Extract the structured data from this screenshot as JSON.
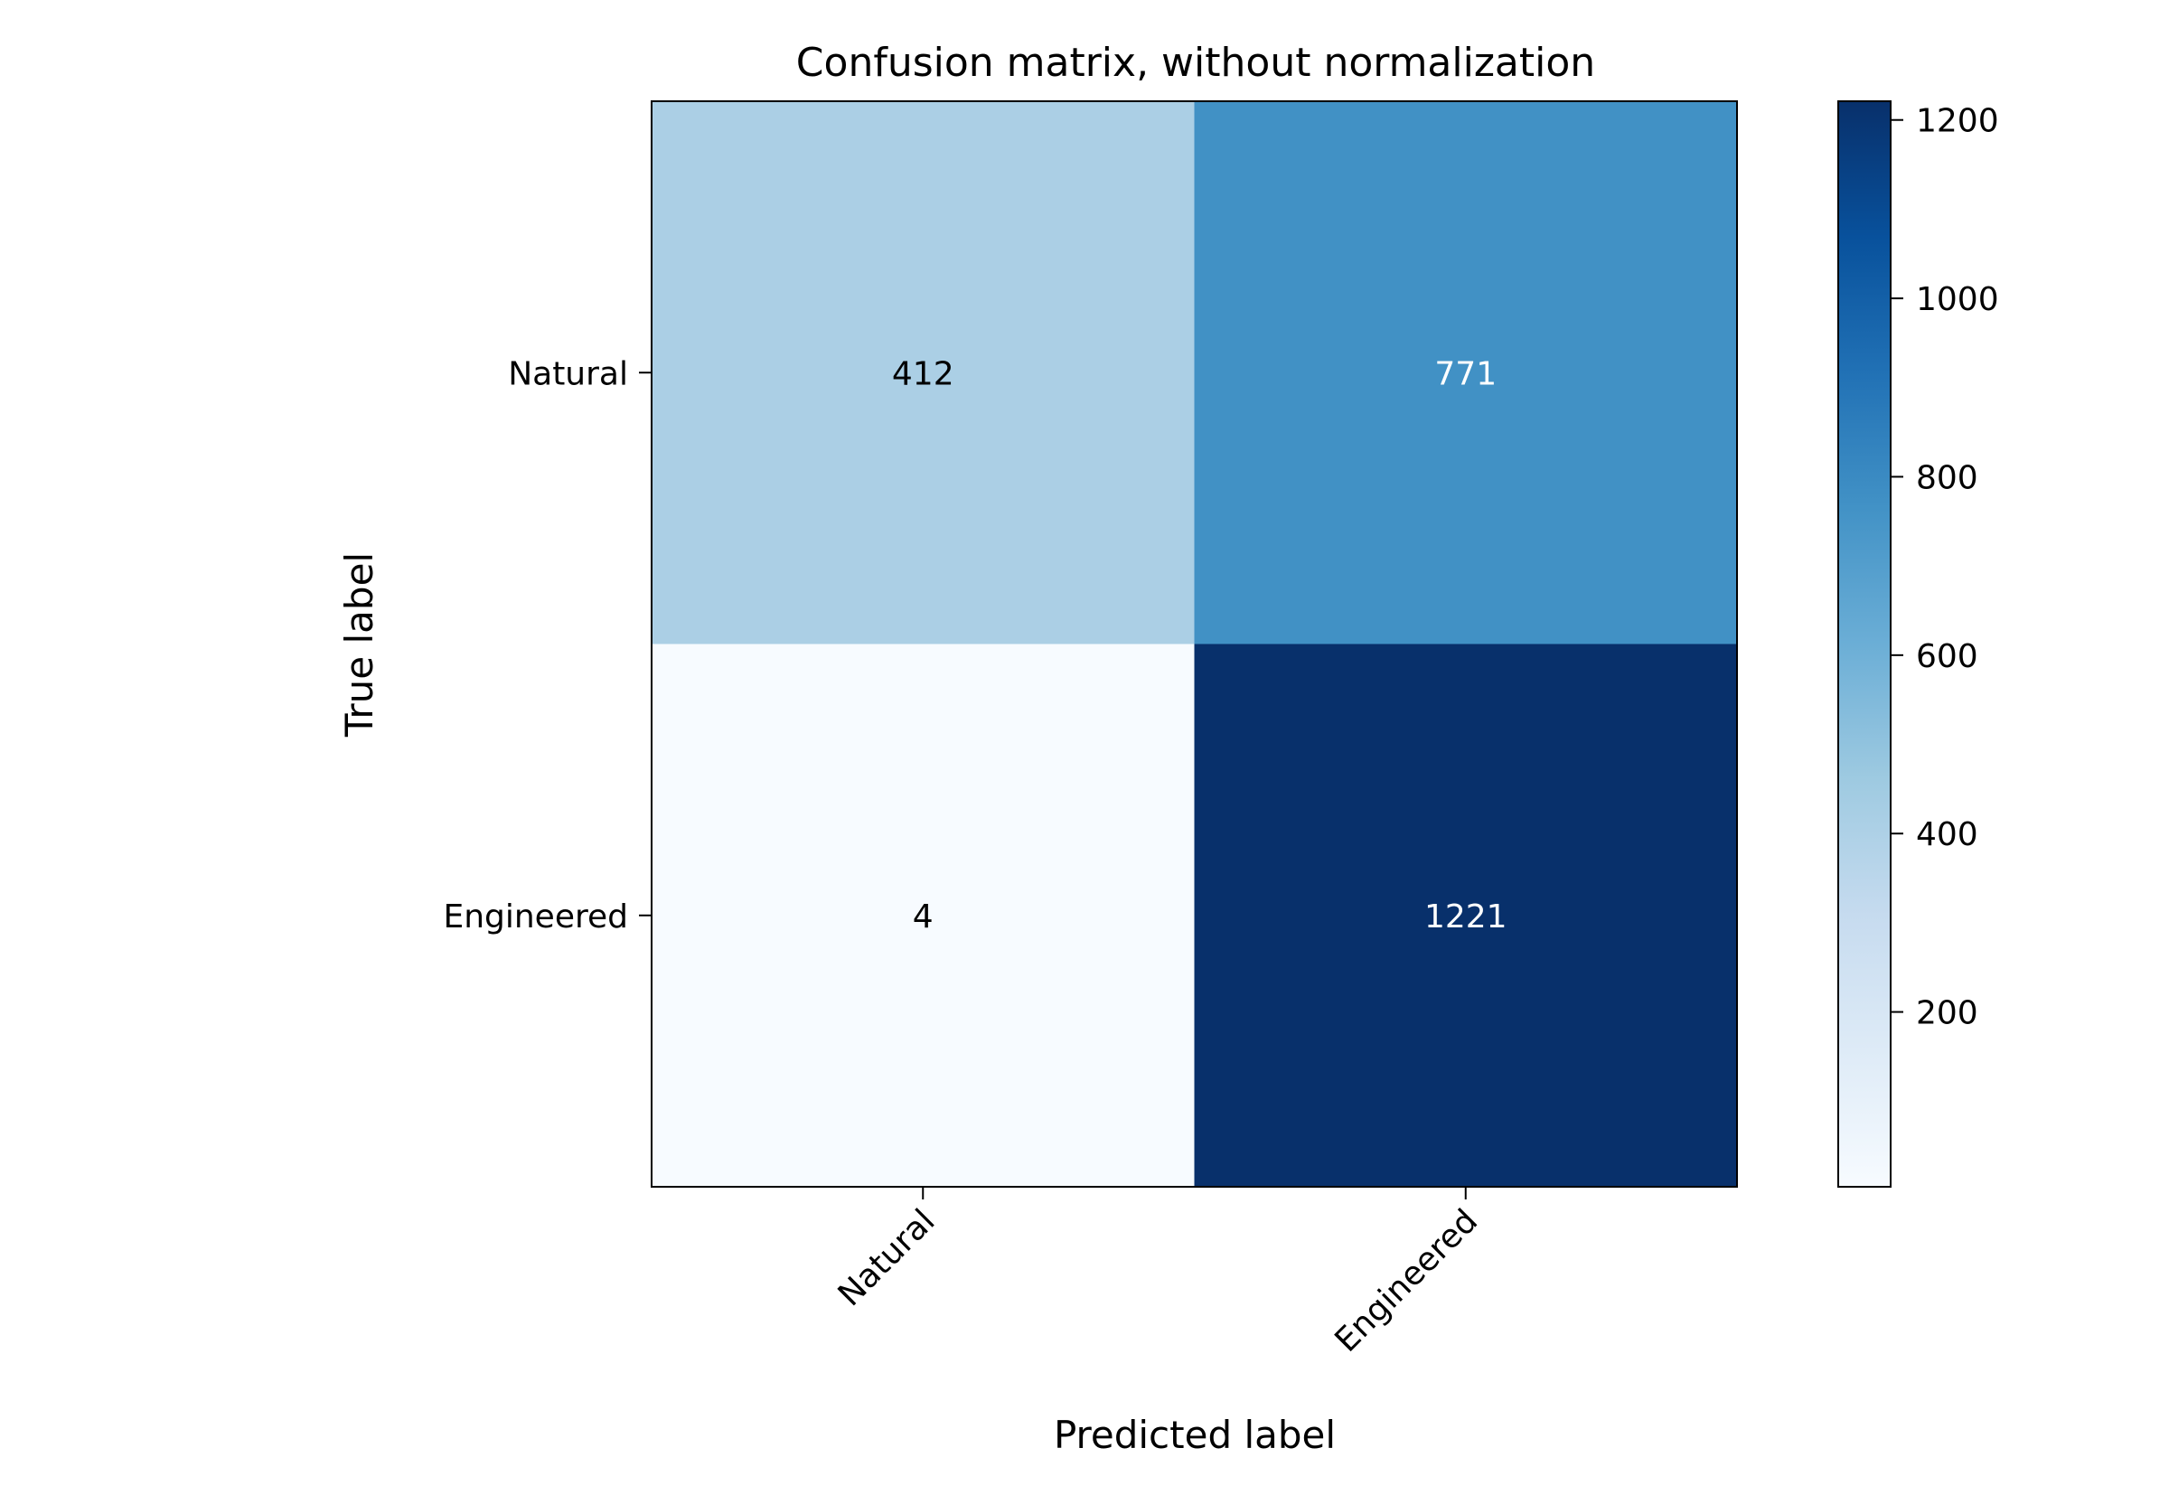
{
  "chart_data": {
    "type": "heatmap",
    "title": "Confusion matrix, without normalization",
    "xlabel": "Predicted label",
    "ylabel": "True label",
    "x_categories": [
      "Natural",
      "Engineered"
    ],
    "y_categories": [
      "Natural",
      "Engineered"
    ],
    "values": [
      [
        412,
        771
      ],
      [
        4,
        1221
      ]
    ],
    "colormap": "Blues",
    "color_range": [
      4,
      1221
    ],
    "colorbar": {
      "ticks": [
        200,
        400,
        600,
        800,
        1000,
        1200
      ],
      "tick_labels": [
        "200",
        "400",
        "600",
        "800",
        "1000",
        "1200"
      ]
    },
    "text_colors": {
      "light_cell": "#000000",
      "dark_cell": "#ffffff"
    },
    "grid": false,
    "legend": "none"
  }
}
